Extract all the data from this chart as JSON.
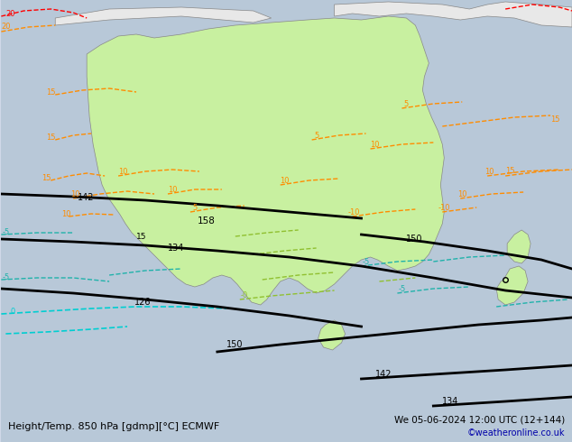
{
  "title_left": "Height/Temp. 850 hPa [gdmp][°C] ECMWF",
  "title_right": "We 05-06-2024 12:00 UTC (12+144)",
  "credit": "©weatheronline.co.uk",
  "background_color": "#d0d8e8",
  "land_color": "#e8e8e8",
  "australia_fill": "#c8f0a0",
  "fig_width": 6.34,
  "fig_height": 4.9,
  "dpi": 100
}
